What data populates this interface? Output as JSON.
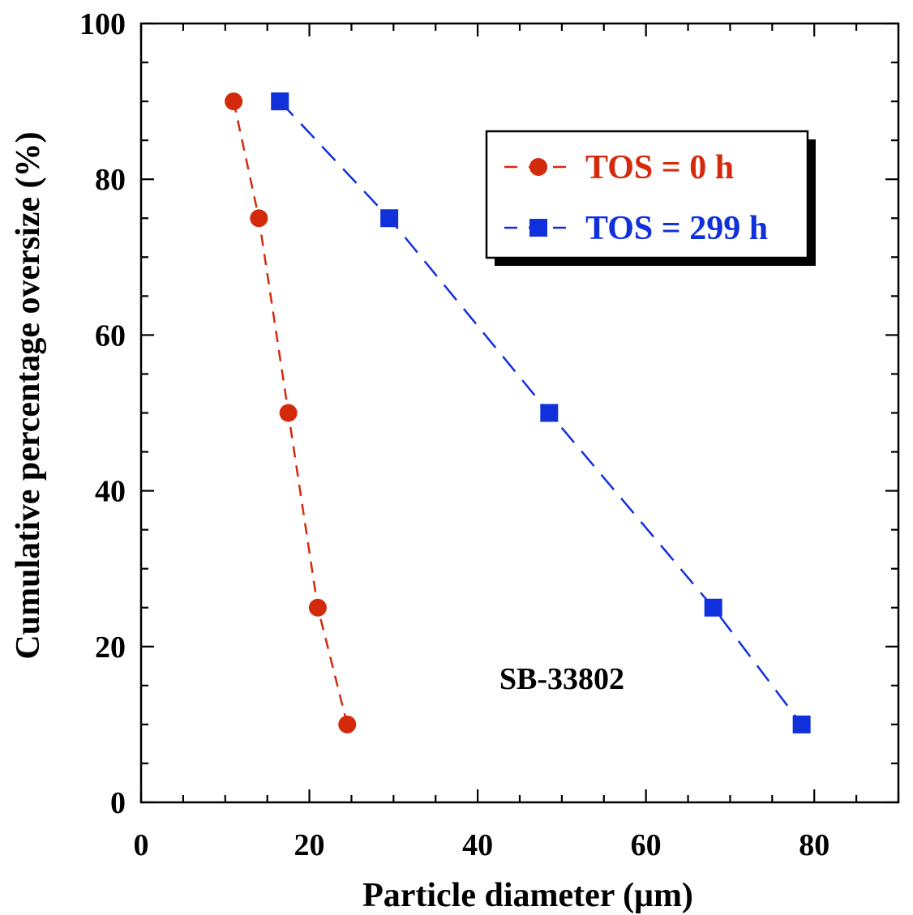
{
  "chart_data": {
    "type": "line",
    "xlabel": "Particle diameter (μm)",
    "ylabel": "Cumulative percentage oversize (%)",
    "xlim": [
      0,
      90
    ],
    "ylim": [
      0,
      100
    ],
    "x_ticks": [
      "0",
      "20",
      "40",
      "60",
      "80"
    ],
    "y_ticks": [
      "0",
      "20",
      "40",
      "60",
      "80",
      "100"
    ],
    "grid": false,
    "legend_position": "top-right",
    "annotation": "SB-33802",
    "series": [
      {
        "name": "TOS = 0 h",
        "color": "#d42a0c",
        "marker": "circle",
        "line": "dashed",
        "points": [
          {
            "x": 11.0,
            "y": 90
          },
          {
            "x": 14.0,
            "y": 75
          },
          {
            "x": 17.5,
            "y": 50
          },
          {
            "x": 21.0,
            "y": 25
          },
          {
            "x": 24.5,
            "y": 10
          }
        ]
      },
      {
        "name": "TOS = 299 h",
        "color": "#1030dc",
        "marker": "square",
        "line": "dashed",
        "points": [
          {
            "x": 16.5,
            "y": 90
          },
          {
            "x": 29.5,
            "y": 75
          },
          {
            "x": 48.5,
            "y": 50
          },
          {
            "x": 68.0,
            "y": 25
          },
          {
            "x": 78.5,
            "y": 10
          }
        ]
      }
    ]
  }
}
